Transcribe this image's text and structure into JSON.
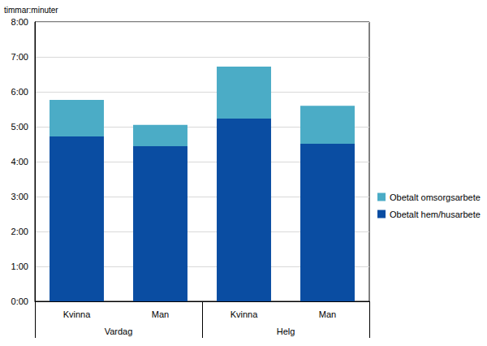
{
  "chart_data": {
    "type": "bar",
    "stacked": true,
    "ylabel": "timmar:minuter",
    "categories": [
      "Kvinna",
      "Man",
      "Kvinna",
      "Man"
    ],
    "groups": [
      {
        "label": "Vardag",
        "size": 2
      },
      {
        "label": "Helg",
        "size": 2
      }
    ],
    "series": [
      {
        "name": "Obetalt hem/husarbete",
        "color": "#0a4da2",
        "values": [
          4.72,
          4.44,
          5.23,
          4.51
        ]
      },
      {
        "name": "Obetalt omsorgsarbete",
        "color": "#4bacc6",
        "values": [
          1.05,
          0.61,
          1.49,
          1.09
        ]
      }
    ],
    "ylim": [
      0,
      8
    ],
    "yticks": [
      {
        "value": 0,
        "label": "0:00"
      },
      {
        "value": 1,
        "label": "1:00"
      },
      {
        "value": 2,
        "label": "2:00"
      },
      {
        "value": 3,
        "label": "3:00"
      },
      {
        "value": 4,
        "label": "4:00"
      },
      {
        "value": 5,
        "label": "5:00"
      },
      {
        "value": 6,
        "label": "6:00"
      },
      {
        "value": 7,
        "label": "7:00"
      },
      {
        "value": 8,
        "label": "8:00"
      }
    ],
    "grid": true,
    "legend": "right"
  }
}
